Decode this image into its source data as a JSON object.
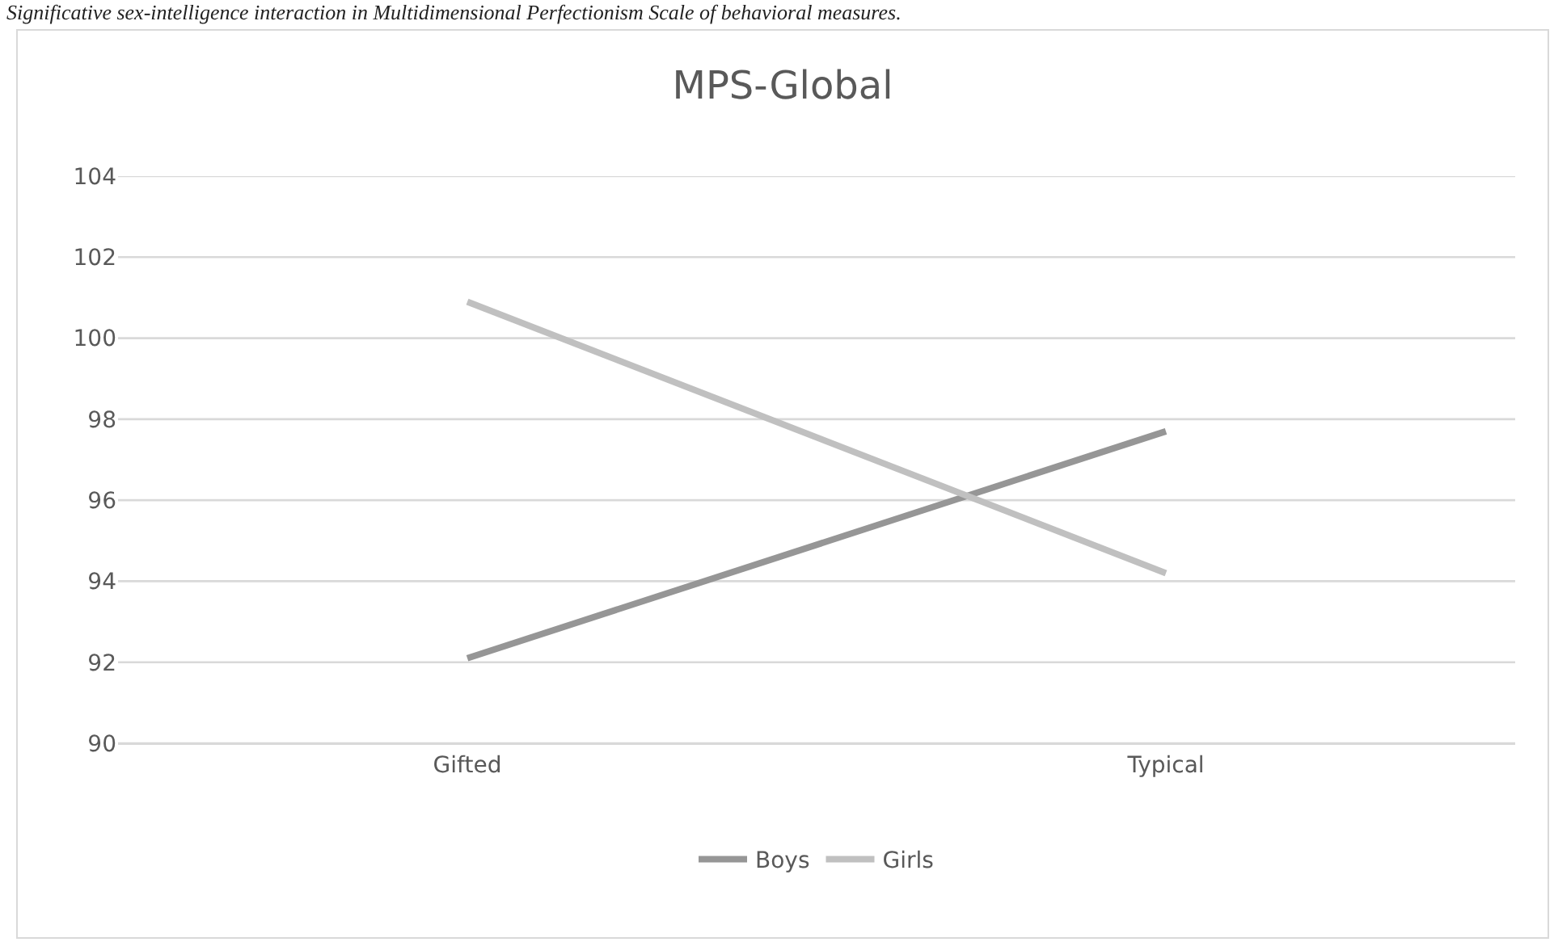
{
  "chart_data": {
    "type": "line",
    "title": "MPS-Global",
    "annotations": [
      "Significative sex-intelligence interaction in Multidimensional Perfectionism Scale of behavioral measures."
    ],
    "categories": [
      "Gifted",
      "Typical"
    ],
    "series": [
      {
        "name": "Boys",
        "color": "#969696",
        "values": [
          92.1,
          97.7
        ]
      },
      {
        "name": "Girls",
        "color": "#c0c0c0",
        "values": [
          100.9,
          94.2
        ]
      }
    ],
    "ylim": [
      90,
      104
    ],
    "yticks": [
      90,
      92,
      94,
      96,
      98,
      100,
      102,
      104
    ],
    "grid": "y",
    "legend": "bottom",
    "marker": "none",
    "line_style": "solid"
  }
}
